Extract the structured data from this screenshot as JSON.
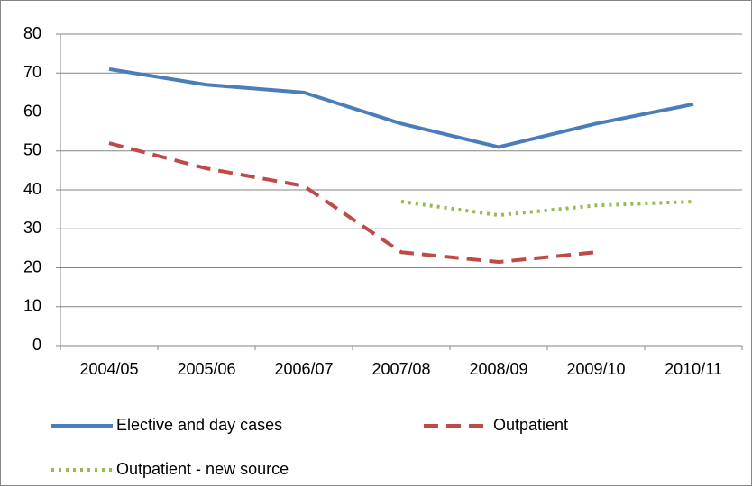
{
  "chart_data": {
    "type": "line",
    "categories": [
      "2004/05",
      "2005/06",
      "2006/07",
      "2007/08",
      "2008/09",
      "2009/10",
      "2010/11"
    ],
    "series": [
      {
        "name": "Elective and day cases",
        "color": "#4a7ebb",
        "dash": "solid",
        "values": [
          71,
          67,
          65,
          57,
          51,
          57,
          62
        ]
      },
      {
        "name": "Outpatient",
        "color": "#be4b48",
        "dash": "dashed",
        "values": [
          52,
          45.5,
          41,
          24,
          21.5,
          24,
          null
        ]
      },
      {
        "name": "Outpatient - new source",
        "color": "#98b954",
        "dash": "dotted",
        "values": [
          null,
          null,
          null,
          37,
          33.5,
          36,
          37
        ]
      }
    ],
    "ylim": [
      0,
      80
    ],
    "yticks": [
      0,
      10,
      20,
      30,
      40,
      50,
      60,
      70,
      80
    ],
    "grid": true,
    "legend": "bottom"
  }
}
